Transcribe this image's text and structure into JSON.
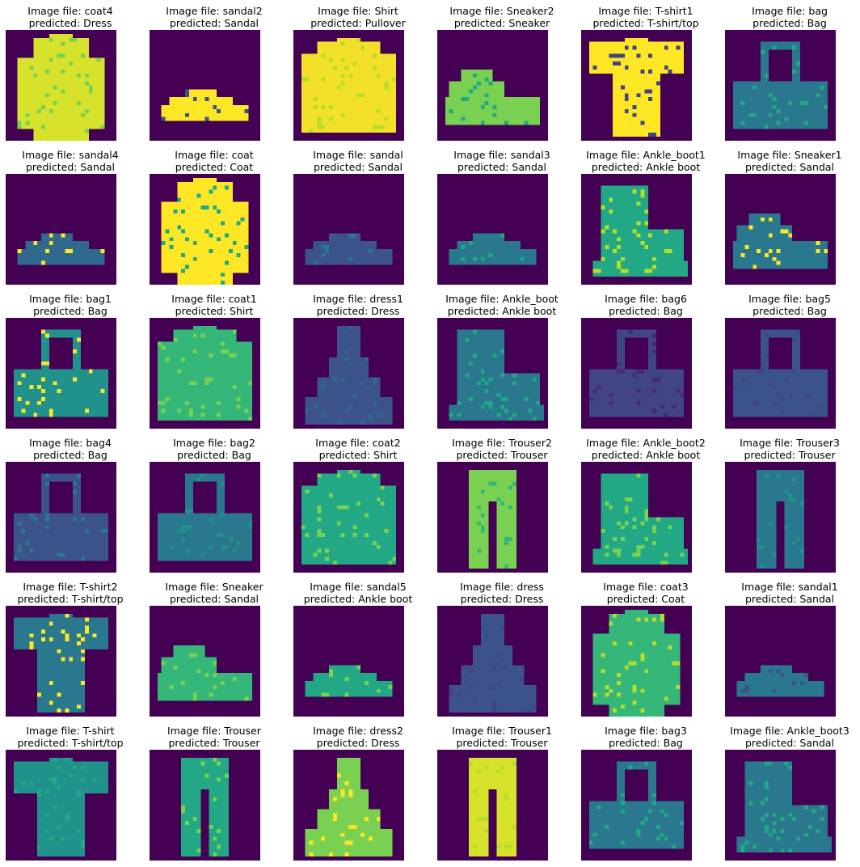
{
  "colors": {
    "background": "#440154",
    "yellow": "#fde725",
    "green": "#7ad151",
    "teal": "#22a884",
    "cyan": "#2a788e",
    "blue": "#414487"
  },
  "rows": [
    [
      {
        "file": "Image file: coat4",
        "pred": "predicted: Dress",
        "shape": "coat",
        "fill": "#d6e22b",
        "accent": "#7ad151"
      },
      {
        "file": "Image file: sandal2",
        "pred": "predicted: Sandal",
        "shape": "sandal",
        "fill": "#fde725",
        "accent": "#3b528b"
      },
      {
        "file": "Image file: Shirt",
        "pred": "predicted: Pullover",
        "shape": "shirt",
        "fill": "#f2e02a",
        "accent": "#b5de2b"
      },
      {
        "file": "Image file: Sneaker2",
        "pred": "predicted: Sneaker",
        "shape": "sneaker",
        "fill": "#7ad151",
        "accent": "#22a884"
      },
      {
        "file": "Image file: T-shirt1",
        "pred": "predicted: T-shirt/top",
        "shape": "tshirt",
        "fill": "#fde725",
        "accent": "#414487"
      },
      {
        "file": "Image file: bag",
        "pred": "predicted: Bag",
        "shape": "bag",
        "fill": "#2a788e",
        "accent": "#22a884"
      }
    ],
    [
      {
        "file": "Image file: sandal4",
        "pred": "predicted: Sandal",
        "shape": "sandal",
        "fill": "#31688e",
        "accent": "#fde725"
      },
      {
        "file": "Image file: coat",
        "pred": "predicted: Coat",
        "shape": "coat",
        "fill": "#fde725",
        "accent": "#22a884"
      },
      {
        "file": "Image file: sandal",
        "pred": "predicted: Sandal",
        "shape": "sandal",
        "fill": "#3b528b",
        "accent": "#2a788e"
      },
      {
        "file": "Image file: sandal3",
        "pred": "predicted: Sandal",
        "shape": "sandal",
        "fill": "#2a788e",
        "accent": "#22a884"
      },
      {
        "file": "Image file: Ankle_boot1",
        "pred": "predicted: Ankle boot",
        "shape": "boot",
        "fill": "#22a884",
        "accent": "#b5de2b"
      },
      {
        "file": "Image file: Sneaker1",
        "pred": "predicted: Sandal",
        "shape": "sneaker",
        "fill": "#2a788e",
        "accent": "#fde725"
      }
    ],
    [
      {
        "file": "Image file: bag1",
        "pred": "predicted: Bag",
        "shape": "bag",
        "fill": "#21918c",
        "accent": "#fde725"
      },
      {
        "file": "Image file: coat1",
        "pred": "predicted: Shirt",
        "shape": "shirt",
        "fill": "#35b779",
        "accent": "#7ad151"
      },
      {
        "file": "Image file: dress1",
        "pred": "predicted: Dress",
        "shape": "dress",
        "fill": "#3b528b",
        "accent": "#31688e"
      },
      {
        "file": "Image file: Ankle_boot",
        "pred": "predicted: Ankle boot",
        "shape": "boot",
        "fill": "#2a788e",
        "accent": "#22a884"
      },
      {
        "file": "Image file: bag6",
        "pred": "predicted: Bag",
        "shape": "bag",
        "fill": "#414487",
        "accent": "#482878"
      },
      {
        "file": "Image file: bag5",
        "pred": "predicted: Bag",
        "shape": "bag",
        "fill": "#3b528b",
        "accent": "#414487"
      }
    ],
    [
      {
        "file": "Image file: bag4",
        "pred": "predicted: Bag",
        "shape": "bag",
        "fill": "#3b528b",
        "accent": "#2a788e"
      },
      {
        "file": "Image file: bag2",
        "pred": "predicted: Bag",
        "shape": "bag",
        "fill": "#2a788e",
        "accent": "#21918c"
      },
      {
        "file": "Image file: coat2",
        "pred": "predicted: Shirt",
        "shape": "shirt",
        "fill": "#22a884",
        "accent": "#7ad151"
      },
      {
        "file": "Image file: Trouser2",
        "pred": "predicted: Trouser",
        "shape": "trouser",
        "fill": "#7ad151",
        "accent": "#35b779"
      },
      {
        "file": "Image file: Ankle_boot2",
        "pred": "predicted: Ankle boot",
        "shape": "boot",
        "fill": "#22a884",
        "accent": "#7ad151"
      },
      {
        "file": "Image file: Trouser3",
        "pred": "predicted: Trouser",
        "shape": "trouser",
        "fill": "#2a788e",
        "accent": "#21918c"
      }
    ],
    [
      {
        "file": "Image file: T-shirt2",
        "pred": "predicted: T-shirt/top",
        "shape": "tshirt",
        "fill": "#2a788e",
        "accent": "#fde725"
      },
      {
        "file": "Image file: Sneaker",
        "pred": "predicted: Sandal",
        "shape": "sneaker",
        "fill": "#35b779",
        "accent": "#7ad151"
      },
      {
        "file": "Image file: sandal5",
        "pred": "predicted: Ankle boot",
        "shape": "sandal",
        "fill": "#22a884",
        "accent": "#7ad151"
      },
      {
        "file": "Image file: dress",
        "pred": "predicted: Dress",
        "shape": "dress",
        "fill": "#3b528b",
        "accent": "#414487"
      },
      {
        "file": "Image file: coat3",
        "pred": "predicted: Coat",
        "shape": "coat",
        "fill": "#35b779",
        "accent": "#b5de2b"
      },
      {
        "file": "Image file: sandal1",
        "pred": "predicted: Sandal",
        "shape": "sandal",
        "fill": "#2a788e",
        "accent": "#3b528b"
      }
    ],
    [
      {
        "file": "Image file: T-shirt",
        "pred": "predicted: T-shirt/top",
        "shape": "tshirt",
        "fill": "#21918c",
        "accent": "#22a884"
      },
      {
        "file": "Image file: Trouser",
        "pred": "predicted: Trouser",
        "shape": "trouser",
        "fill": "#22a884",
        "accent": "#7ad151"
      },
      {
        "file": "Image file: dress2",
        "pred": "predicted: Dress",
        "shape": "dress",
        "fill": "#7ad151",
        "accent": "#fde725"
      },
      {
        "file": "Image file: Trouser1",
        "pred": "predicted: Trouser",
        "shape": "trouser",
        "fill": "#d6e22b",
        "accent": "#b5de2b"
      },
      {
        "file": "Image file: bag3",
        "pred": "predicted: Bag",
        "shape": "bag",
        "fill": "#2a788e",
        "accent": "#22a884"
      },
      {
        "file": "Image file: Ankle_boot3",
        "pred": "predicted: Sandal",
        "shape": "boot",
        "fill": "#2a788e",
        "accent": "#22a884"
      }
    ]
  ]
}
